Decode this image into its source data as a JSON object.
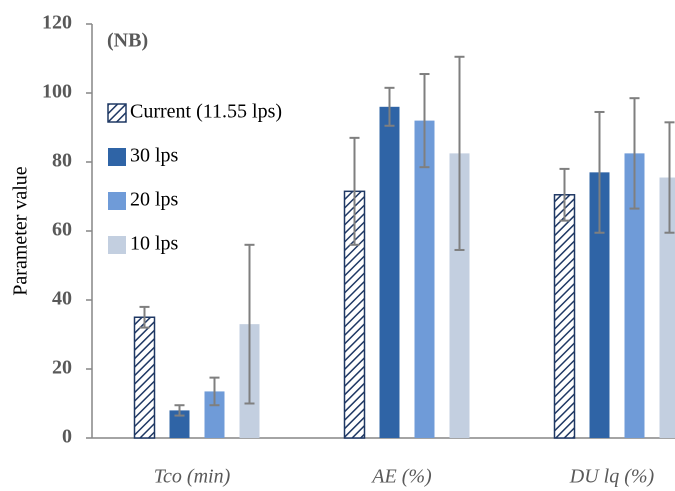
{
  "chart_data": {
    "type": "bar",
    "annotation": "(NB)",
    "y_label": "Parameter value",
    "categories": [
      "Tco (min)",
      "AE (%)",
      "DU lq (%)"
    ],
    "series": [
      {
        "name": "Current (11.55 lps)",
        "color": "#1f3864",
        "hatch": true,
        "values": [
          35,
          71.5,
          70.5
        ],
        "errors": [
          3,
          15.5,
          7.5
        ]
      },
      {
        "name": "30 lps",
        "color": "#2f64a6",
        "values": [
          8,
          96,
          77
        ],
        "errors": [
          1.5,
          5.5,
          17.5
        ]
      },
      {
        "name": "20 lps",
        "color": "#6f9bd8",
        "values": [
          13.5,
          92,
          82.5
        ],
        "errors": [
          4,
          13.5,
          16
        ]
      },
      {
        "name": "10 lps",
        "color": "#c3cfe0",
        "values": [
          33,
          82.5,
          75.5
        ],
        "errors": [
          23,
          28,
          16
        ]
      }
    ],
    "ylim": [
      0,
      120
    ],
    "yticks": [
      0,
      20,
      40,
      60,
      80,
      100,
      120
    ],
    "grid": false,
    "legend": "top-left"
  }
}
